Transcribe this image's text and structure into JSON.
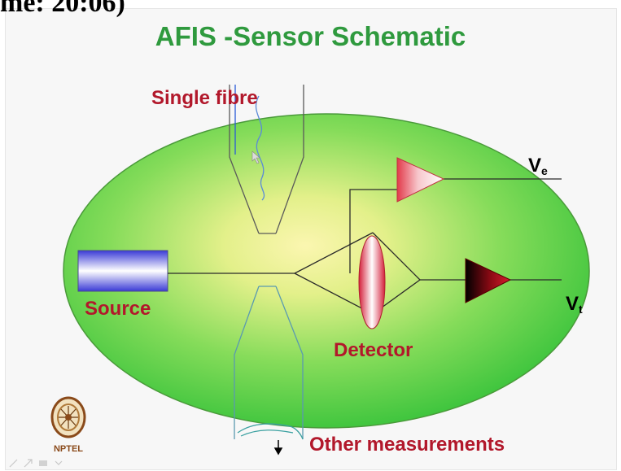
{
  "header": {
    "timestamp_text": "me: 20:06)"
  },
  "slide": {
    "title": "AFIS -Sensor Schematic",
    "labels": {
      "single_fibre": "Single fibre",
      "source": "Source",
      "detector": "Detector",
      "other_measurements": "Other measurements"
    },
    "signals": {
      "ve_main": "V",
      "ve_sub": "e",
      "vt_main": "V",
      "vt_sub": "t"
    },
    "logo_text": "NPTEL"
  },
  "colors": {
    "title": "#2f9a3e",
    "label": "#b2182b",
    "ellipse_center": "#fbf6b0",
    "ellipse_edge": "#3cc83c"
  },
  "icons": [
    "nptel-logo-icon",
    "pen-tool-icon",
    "arrow-tool-icon",
    "eraser-tool-icon",
    "menu-tool-icon"
  ]
}
